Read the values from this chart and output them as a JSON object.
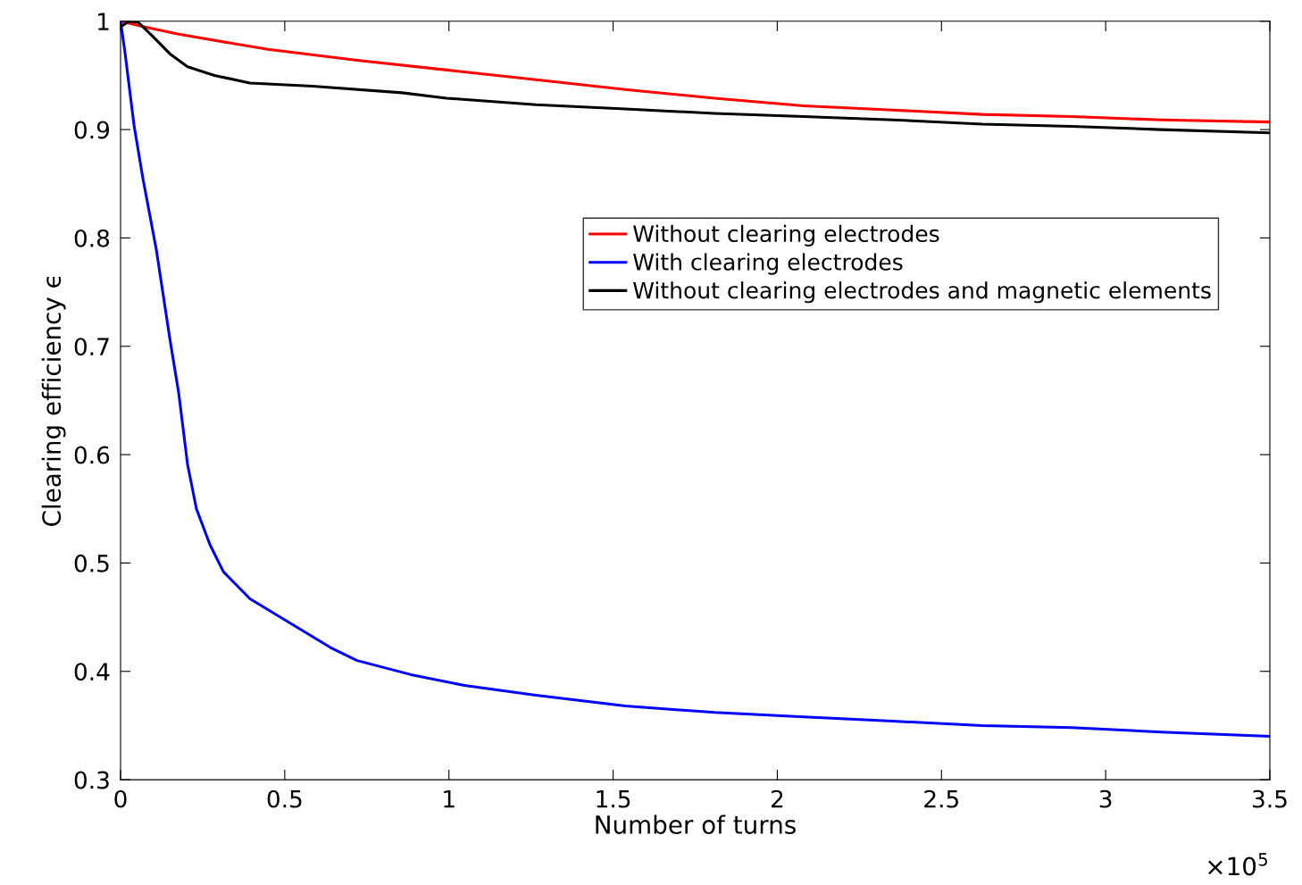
{
  "chart_data": {
    "type": "line",
    "xlabel": "Number of turns",
    "ylabel": "Clearing efficiency ϵ",
    "xlim": [
      0,
      3.5
    ],
    "xticks": [
      0,
      0.5,
      1,
      1.5,
      2,
      2.5,
      3,
      3.5
    ],
    "ylim": [
      0.3,
      1
    ],
    "yticks": [
      0.3,
      0.4,
      0.5,
      0.6,
      0.7,
      0.8,
      0.9,
      1
    ],
    "grid": false,
    "legend": "right",
    "line_style": "solid",
    "marker": "none",
    "annotations": [
      "×10$^{5}$"
    ],
    "series": [
      {
        "name": "Without clearing electrodes",
        "color": "#ff0000",
        "x": [
          0,
          0.068,
          0.177,
          0.449,
          0.72,
          0.993,
          1.265,
          1.537,
          1.809,
          2.08,
          2.352,
          2.624,
          2.896,
          3.168,
          3.5
        ],
        "values": [
          1.0,
          0.995,
          0.988,
          0.974,
          0.964,
          0.955,
          0.946,
          0.937,
          0.929,
          0.922,
          0.918,
          0.914,
          0.912,
          0.909,
          0.907
        ]
      },
      {
        "name": "With clearing electrodes",
        "color": "#0000ff",
        "x": [
          0,
          0.014,
          0.041,
          0.068,
          0.109,
          0.15,
          0.177,
          0.204,
          0.231,
          0.272,
          0.313,
          0.394,
          0.503,
          0.639,
          0.72,
          0.884,
          1.047,
          1.265,
          1.537,
          1.809,
          2.08,
          2.352,
          2.624,
          2.896,
          3.168,
          3.5
        ],
        "values": [
          1.0,
          0.97,
          0.904,
          0.855,
          0.789,
          0.707,
          0.657,
          0.591,
          0.55,
          0.517,
          0.492,
          0.467,
          0.447,
          0.422,
          0.41,
          0.397,
          0.387,
          0.378,
          0.368,
          0.362,
          0.358,
          0.354,
          0.35,
          0.348,
          0.344,
          0.34
        ]
      },
      {
        "name": "Without clearing electrodes and magnetic elements",
        "color": "#000000",
        "x": [
          0,
          0.027,
          0.054,
          0.095,
          0.15,
          0.204,
          0.286,
          0.394,
          0.585,
          0.857,
          0.993,
          1.265,
          1.537,
          1.809,
          2.08,
          2.352,
          2.624,
          2.896,
          3.168,
          3.5
        ],
        "values": [
          0.995,
          1.0,
          0.999,
          0.987,
          0.97,
          0.958,
          0.95,
          0.943,
          0.94,
          0.934,
          0.929,
          0.923,
          0.919,
          0.915,
          0.912,
          0.909,
          0.905,
          0.903,
          0.9,
          0.897
        ]
      }
    ]
  }
}
